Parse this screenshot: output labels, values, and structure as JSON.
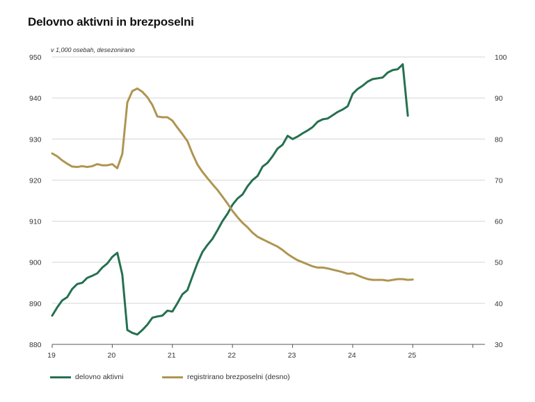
{
  "chart_data": {
    "type": "line",
    "title": "Delovno aktivni in brezposelni",
    "subtitle": "v 1,000 osebah, desezonirano",
    "x_ticks": [
      "19",
      "20",
      "21",
      "22",
      "23",
      "24",
      "25"
    ],
    "x_range": [
      19,
      26.2
    ],
    "y_left": {
      "min": 880,
      "max": 950,
      "ticks": [
        "880",
        "890",
        "900",
        "910",
        "920",
        "930",
        "940",
        "950"
      ]
    },
    "y_right": {
      "min": 30,
      "max": 100,
      "ticks": [
        "30",
        "40",
        "50",
        "60",
        "70",
        "80",
        "90",
        "100"
      ]
    },
    "grid": "horizontal",
    "legend_position": "bottom",
    "series": [
      {
        "name": "delovno aktivni",
        "axis": "left",
        "color": "#25704f",
        "x": [
          19.0,
          19.083,
          19.167,
          19.25,
          19.333,
          19.417,
          19.5,
          19.583,
          19.667,
          19.75,
          19.833,
          19.917,
          20.0,
          20.083,
          20.167,
          20.25,
          20.333,
          20.417,
          20.5,
          20.583,
          20.667,
          20.75,
          20.833,
          20.917,
          21.0,
          21.083,
          21.167,
          21.25,
          21.333,
          21.417,
          21.5,
          21.583,
          21.667,
          21.75,
          21.833,
          21.917,
          22.0,
          22.083,
          22.167,
          22.25,
          22.333,
          22.417,
          22.5,
          22.583,
          22.667,
          22.75,
          22.833,
          22.917,
          23.0,
          23.083,
          23.167,
          23.25,
          23.333,
          23.417,
          23.5,
          23.583,
          23.667,
          23.75,
          23.833,
          23.917,
          24.0,
          24.083,
          24.167,
          24.25,
          24.333,
          24.417,
          24.5,
          24.583,
          24.667,
          24.75,
          24.833,
          24.917
        ],
        "values": [
          887.0,
          889.0,
          890.7,
          891.5,
          893.5,
          894.7,
          895.0,
          896.2,
          896.7,
          897.3,
          898.7,
          899.7,
          901.3,
          902.3,
          897.0,
          883.5,
          882.8,
          882.4,
          883.5,
          884.8,
          886.5,
          886.8,
          887.0,
          888.2,
          888.0,
          890.0,
          892.2,
          893.2,
          896.5,
          899.8,
          902.5,
          904.2,
          905.7,
          907.8,
          910.0,
          911.8,
          914.0,
          915.5,
          916.5,
          918.5,
          920.0,
          921.0,
          923.3,
          924.2,
          925.8,
          927.7,
          928.6,
          930.8,
          930.0,
          930.6,
          931.4,
          932.1,
          932.9,
          934.2,
          934.8,
          935.0,
          935.8,
          936.6,
          937.2,
          938.0,
          941.0,
          942.2,
          943.0,
          944.0,
          944.6,
          944.8,
          945.0,
          946.2,
          946.8,
          947.0,
          948.2,
          935.7
        ]
      },
      {
        "name": "registrirano brezposelni (desno)",
        "axis": "right",
        "color": "#ae9550",
        "x": [
          19.0,
          19.083,
          19.167,
          19.25,
          19.333,
          19.417,
          19.5,
          19.583,
          19.667,
          19.75,
          19.833,
          19.917,
          20.0,
          20.083,
          20.167,
          20.25,
          20.333,
          20.417,
          20.5,
          20.583,
          20.667,
          20.75,
          20.833,
          20.917,
          21.0,
          21.083,
          21.167,
          21.25,
          21.333,
          21.417,
          21.5,
          21.583,
          21.667,
          21.75,
          21.833,
          21.917,
          22.0,
          22.083,
          22.167,
          22.25,
          22.333,
          22.417,
          22.5,
          22.583,
          22.667,
          22.75,
          22.833,
          22.917,
          23.0,
          23.083,
          23.167,
          23.25,
          23.333,
          23.417,
          23.5,
          23.583,
          23.667,
          23.75,
          23.833,
          23.917,
          24.0,
          24.083,
          24.167,
          24.25,
          24.333,
          24.417,
          24.5,
          24.583,
          24.667,
          24.75,
          24.833,
          24.917,
          25.0
        ],
        "values": [
          76.5,
          75.8,
          74.8,
          74.0,
          73.3,
          73.2,
          73.4,
          73.2,
          73.4,
          73.9,
          73.6,
          73.6,
          73.9,
          72.9,
          76.4,
          88.9,
          91.7,
          92.3,
          91.5,
          90.2,
          88.3,
          85.5,
          85.3,
          85.3,
          84.5,
          82.8,
          81.2,
          79.5,
          76.5,
          73.8,
          72.0,
          70.5,
          69.0,
          67.6,
          66.0,
          64.3,
          62.5,
          61.0,
          59.6,
          58.5,
          57.2,
          56.2,
          55.6,
          55.0,
          54.4,
          53.8,
          53.0,
          52.0,
          51.2,
          50.5,
          50.0,
          49.5,
          49.0,
          48.7,
          48.7,
          48.5,
          48.2,
          47.9,
          47.6,
          47.2,
          47.3,
          46.8,
          46.3,
          45.9,
          45.7,
          45.7,
          45.7,
          45.5,
          45.7,
          45.9,
          45.9,
          45.7,
          45.8
        ]
      }
    ]
  }
}
